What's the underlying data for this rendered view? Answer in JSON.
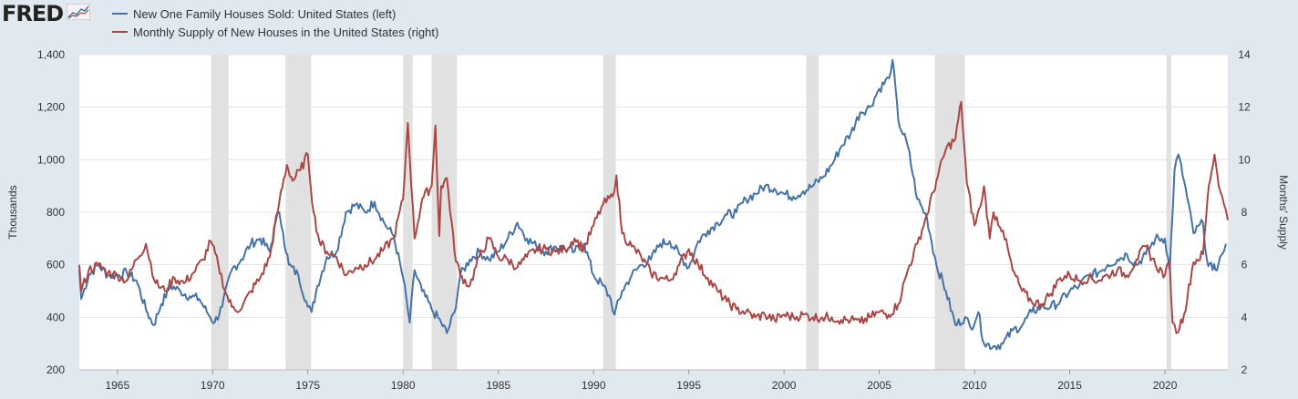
{
  "header": {
    "logo_text": "FRED",
    "logo_icon": "chart-trend-icon"
  },
  "colors": {
    "background": "#e1e9f0",
    "plot_background": "#ffffff",
    "recession_band": "#e1e1e1",
    "series_left": "#4572a7",
    "series_right": "#aa4643",
    "grid": "#e3e3e3"
  },
  "chart_data": {
    "type": "line",
    "title": "",
    "x_range": [
      1963.0,
      2023.3
    ],
    "x_ticks": [
      "1965",
      "1970",
      "1975",
      "1980",
      "1985",
      "1990",
      "1995",
      "2000",
      "2005",
      "2010",
      "2015",
      "2020"
    ],
    "xlabel": "",
    "ylabel_left": "Thousands",
    "ylabel_right": "Months' Supply",
    "ylim_left": [
      200,
      1400
    ],
    "ylim_right": [
      2,
      14
    ],
    "y_ticks_left": [
      "200",
      "400",
      "600",
      "800",
      "1,000",
      "1,200",
      "1,400"
    ],
    "y_ticks_right": [
      "2",
      "4",
      "6",
      "8",
      "10",
      "12",
      "14"
    ],
    "grid": "horizontal",
    "legend_position": "top-left",
    "recessions": [
      [
        1969.92,
        1970.83
      ],
      [
        1973.83,
        1975.17
      ],
      [
        1980.0,
        1980.5
      ],
      [
        1981.5,
        1982.83
      ],
      [
        1990.5,
        1991.17
      ],
      [
        2001.17,
        2001.83
      ],
      [
        2007.92,
        2009.5
      ],
      [
        2020.08,
        2020.33
      ]
    ],
    "series": [
      {
        "name": "New One Family Houses Sold: United States (left)",
        "axis": "left",
        "points": [
          [
            1963.0,
            580
          ],
          [
            1963.1,
            470
          ],
          [
            1963.5,
            560
          ],
          [
            1964.0,
            600
          ],
          [
            1964.5,
            560
          ],
          [
            1965.0,
            560
          ],
          [
            1965.5,
            570
          ],
          [
            1966.0,
            540
          ],
          [
            1966.5,
            430
          ],
          [
            1966.9,
            370
          ],
          [
            1967.3,
            450
          ],
          [
            1967.8,
            520
          ],
          [
            1968.3,
            500
          ],
          [
            1968.8,
            480
          ],
          [
            1969.3,
            470
          ],
          [
            1969.7,
            420
          ],
          [
            1970.1,
            380
          ],
          [
            1970.5,
            440
          ],
          [
            1971.0,
            580
          ],
          [
            1971.5,
            620
          ],
          [
            1972.0,
            680
          ],
          [
            1972.5,
            700
          ],
          [
            1973.0,
            650
          ],
          [
            1973.3,
            760
          ],
          [
            1973.5,
            800
          ],
          [
            1973.7,
            720
          ],
          [
            1974.0,
            600
          ],
          [
            1974.5,
            560
          ],
          [
            1975.0,
            440
          ],
          [
            1975.2,
            420
          ],
          [
            1975.5,
            520
          ],
          [
            1976.0,
            630
          ],
          [
            1976.5,
            650
          ],
          [
            1977.0,
            800
          ],
          [
            1977.5,
            830
          ],
          [
            1978.0,
            800
          ],
          [
            1978.5,
            840
          ],
          [
            1979.0,
            760
          ],
          [
            1979.5,
            710
          ],
          [
            1980.0,
            550
          ],
          [
            1980.35,
            380
          ],
          [
            1980.6,
            580
          ],
          [
            1981.0,
            500
          ],
          [
            1981.5,
            430
          ],
          [
            1982.0,
            380
          ],
          [
            1982.3,
            340
          ],
          [
            1982.7,
            420
          ],
          [
            1983.0,
            560
          ],
          [
            1983.5,
            620
          ],
          [
            1984.0,
            650
          ],
          [
            1984.5,
            620
          ],
          [
            1985.0,
            650
          ],
          [
            1985.5,
            700
          ],
          [
            1986.0,
            760
          ],
          [
            1986.5,
            700
          ],
          [
            1987.0,
            670
          ],
          [
            1987.5,
            650
          ],
          [
            1988.0,
            670
          ],
          [
            1988.5,
            660
          ],
          [
            1989.0,
            650
          ],
          [
            1989.5,
            680
          ],
          [
            1990.0,
            560
          ],
          [
            1990.5,
            520
          ],
          [
            1990.9,
            470
          ],
          [
            1991.1,
            410
          ],
          [
            1991.5,
            500
          ],
          [
            1992.0,
            560
          ],
          [
            1992.5,
            600
          ],
          [
            1993.0,
            620
          ],
          [
            1993.5,
            680
          ],
          [
            1994.0,
            690
          ],
          [
            1994.5,
            640
          ],
          [
            1995.0,
            590
          ],
          [
            1995.5,
            690
          ],
          [
            1996.0,
            730
          ],
          [
            1996.5,
            760
          ],
          [
            1997.0,
            790
          ],
          [
            1997.5,
            800
          ],
          [
            1998.0,
            850
          ],
          [
            1998.5,
            870
          ],
          [
            1999.0,
            900
          ],
          [
            1999.5,
            890
          ],
          [
            2000.0,
            870
          ],
          [
            2000.5,
            860
          ],
          [
            2001.0,
            880
          ],
          [
            2001.5,
            900
          ],
          [
            2002.0,
            930
          ],
          [
            2002.5,
            980
          ],
          [
            2003.0,
            1050
          ],
          [
            2003.5,
            1100
          ],
          [
            2004.0,
            1180
          ],
          [
            2004.5,
            1200
          ],
          [
            2005.0,
            1270
          ],
          [
            2005.5,
            1310
          ],
          [
            2005.7,
            1380
          ],
          [
            2006.0,
            1150
          ],
          [
            2006.5,
            1050
          ],
          [
            2007.0,
            850
          ],
          [
            2007.5,
            780
          ],
          [
            2008.0,
            600
          ],
          [
            2008.5,
            500
          ],
          [
            2009.0,
            370
          ],
          [
            2009.5,
            400
          ],
          [
            2009.8,
            360
          ],
          [
            2010.2,
            420
          ],
          [
            2010.5,
            300
          ],
          [
            2011.0,
            290
          ],
          [
            2011.5,
            300
          ],
          [
            2012.0,
            350
          ],
          [
            2012.5,
            370
          ],
          [
            2013.0,
            420
          ],
          [
            2013.5,
            440
          ],
          [
            2014.0,
            440
          ],
          [
            2014.5,
            460
          ],
          [
            2015.0,
            500
          ],
          [
            2015.5,
            520
          ],
          [
            2016.0,
            560
          ],
          [
            2016.5,
            570
          ],
          [
            2017.0,
            600
          ],
          [
            2017.5,
            620
          ],
          [
            2018.0,
            640
          ],
          [
            2018.5,
            600
          ],
          [
            2019.0,
            640
          ],
          [
            2019.5,
            700
          ],
          [
            2020.0,
            700
          ],
          [
            2020.25,
            580
          ],
          [
            2020.5,
            960
          ],
          [
            2020.7,
            1020
          ],
          [
            2021.0,
            920
          ],
          [
            2021.5,
            720
          ],
          [
            2022.0,
            760
          ],
          [
            2022.2,
            620
          ],
          [
            2022.5,
            580
          ],
          [
            2022.8,
            600
          ],
          [
            2023.0,
            640
          ],
          [
            2023.2,
            680
          ]
        ]
      },
      {
        "name": "Monthly Supply of New Houses in the United States (right)",
        "axis": "right",
        "points": [
          [
            1963.0,
            6.0
          ],
          [
            1963.1,
            5.0
          ],
          [
            1963.5,
            5.8
          ],
          [
            1964.0,
            6.0
          ],
          [
            1964.5,
            5.7
          ],
          [
            1965.0,
            5.6
          ],
          [
            1965.5,
            5.4
          ],
          [
            1966.0,
            6.2
          ],
          [
            1966.5,
            6.8
          ],
          [
            1967.0,
            5.3
          ],
          [
            1967.5,
            5.0
          ],
          [
            1968.0,
            5.5
          ],
          [
            1968.5,
            5.3
          ],
          [
            1969.0,
            5.7
          ],
          [
            1969.5,
            6.2
          ],
          [
            1969.9,
            6.9
          ],
          [
            1970.3,
            6.0
          ],
          [
            1970.7,
            4.9
          ],
          [
            1971.0,
            4.4
          ],
          [
            1971.5,
            4.3
          ],
          [
            1972.0,
            5.0
          ],
          [
            1972.5,
            5.5
          ],
          [
            1973.0,
            6.3
          ],
          [
            1973.5,
            8.4
          ],
          [
            1973.9,
            9.8
          ],
          [
            1974.2,
            9.2
          ],
          [
            1974.6,
            9.6
          ],
          [
            1975.0,
            10.2
          ],
          [
            1975.3,
            8.0
          ],
          [
            1975.6,
            6.9
          ],
          [
            1976.0,
            6.5
          ],
          [
            1976.5,
            6.3
          ],
          [
            1977.0,
            5.6
          ],
          [
            1977.5,
            5.9
          ],
          [
            1978.0,
            6.0
          ],
          [
            1978.5,
            6.2
          ],
          [
            1979.0,
            6.6
          ],
          [
            1979.5,
            7.0
          ],
          [
            1980.0,
            8.5
          ],
          [
            1980.25,
            11.4
          ],
          [
            1980.6,
            7.0
          ],
          [
            1981.0,
            8.5
          ],
          [
            1981.5,
            9.0
          ],
          [
            1981.7,
            11.3
          ],
          [
            1981.9,
            7.1
          ],
          [
            1982.0,
            9.0
          ],
          [
            1982.3,
            9.3
          ],
          [
            1982.7,
            6.5
          ],
          [
            1983.0,
            5.6
          ],
          [
            1983.5,
            5.2
          ],
          [
            1984.0,
            6.3
          ],
          [
            1984.5,
            7.0
          ],
          [
            1985.0,
            6.3
          ],
          [
            1985.5,
            6.2
          ],
          [
            1986.0,
            5.9
          ],
          [
            1986.5,
            6.3
          ],
          [
            1987.0,
            6.6
          ],
          [
            1987.5,
            6.6
          ],
          [
            1988.0,
            6.5
          ],
          [
            1988.5,
            6.6
          ],
          [
            1989.0,
            7.0
          ],
          [
            1989.5,
            6.6
          ],
          [
            1990.0,
            7.5
          ],
          [
            1990.5,
            8.3
          ],
          [
            1991.0,
            8.6
          ],
          [
            1991.2,
            9.4
          ],
          [
            1991.5,
            7.2
          ],
          [
            1992.0,
            6.7
          ],
          [
            1992.5,
            6.3
          ],
          [
            1993.0,
            5.7
          ],
          [
            1993.5,
            5.5
          ],
          [
            1994.0,
            5.4
          ],
          [
            1994.5,
            6.0
          ],
          [
            1995.0,
            6.6
          ],
          [
            1995.5,
            6.0
          ],
          [
            1996.0,
            5.5
          ],
          [
            1996.5,
            5.0
          ],
          [
            1997.0,
            4.6
          ],
          [
            1997.5,
            4.3
          ],
          [
            1998.0,
            4.2
          ],
          [
            1998.5,
            4.0
          ],
          [
            1999.0,
            4.1
          ],
          [
            1999.5,
            3.9
          ],
          [
            2000.0,
            4.1
          ],
          [
            2000.5,
            4.0
          ],
          [
            2001.0,
            4.1
          ],
          [
            2001.5,
            4.0
          ],
          [
            2002.0,
            4.0
          ],
          [
            2002.5,
            4.0
          ],
          [
            2003.0,
            3.9
          ],
          [
            2003.5,
            3.9
          ],
          [
            2004.0,
            3.8
          ],
          [
            2004.5,
            4.0
          ],
          [
            2005.0,
            4.2
          ],
          [
            2005.5,
            4.1
          ],
          [
            2006.0,
            4.5
          ],
          [
            2006.5,
            5.8
          ],
          [
            2007.0,
            6.8
          ],
          [
            2007.5,
            7.9
          ],
          [
            2008.0,
            9.2
          ],
          [
            2008.5,
            10.4
          ],
          [
            2009.0,
            10.8
          ],
          [
            2009.3,
            12.2
          ],
          [
            2009.6,
            9.1
          ],
          [
            2010.0,
            7.5
          ],
          [
            2010.3,
            8.2
          ],
          [
            2010.5,
            9.0
          ],
          [
            2010.8,
            7.0
          ],
          [
            2011.0,
            8.0
          ],
          [
            2011.5,
            7.3
          ],
          [
            2012.0,
            5.8
          ],
          [
            2012.5,
            5.0
          ],
          [
            2013.0,
            4.6
          ],
          [
            2013.5,
            4.5
          ],
          [
            2014.0,
            4.9
          ],
          [
            2014.5,
            5.5
          ],
          [
            2015.0,
            5.6
          ],
          [
            2015.5,
            5.4
          ],
          [
            2016.0,
            5.5
          ],
          [
            2016.5,
            5.4
          ],
          [
            2017.0,
            5.6
          ],
          [
            2017.5,
            5.8
          ],
          [
            2018.0,
            5.6
          ],
          [
            2018.5,
            6.2
          ],
          [
            2019.0,
            6.7
          ],
          [
            2019.5,
            6.0
          ],
          [
            2020.0,
            5.6
          ],
          [
            2020.25,
            6.1
          ],
          [
            2020.4,
            3.8
          ],
          [
            2020.6,
            3.4
          ],
          [
            2021.0,
            4.1
          ],
          [
            2021.5,
            6.1
          ],
          [
            2022.0,
            6.4
          ],
          [
            2022.3,
            9.0
          ],
          [
            2022.6,
            10.2
          ],
          [
            2022.9,
            8.8
          ],
          [
            2023.1,
            8.3
          ],
          [
            2023.3,
            7.7
          ]
        ]
      }
    ]
  }
}
